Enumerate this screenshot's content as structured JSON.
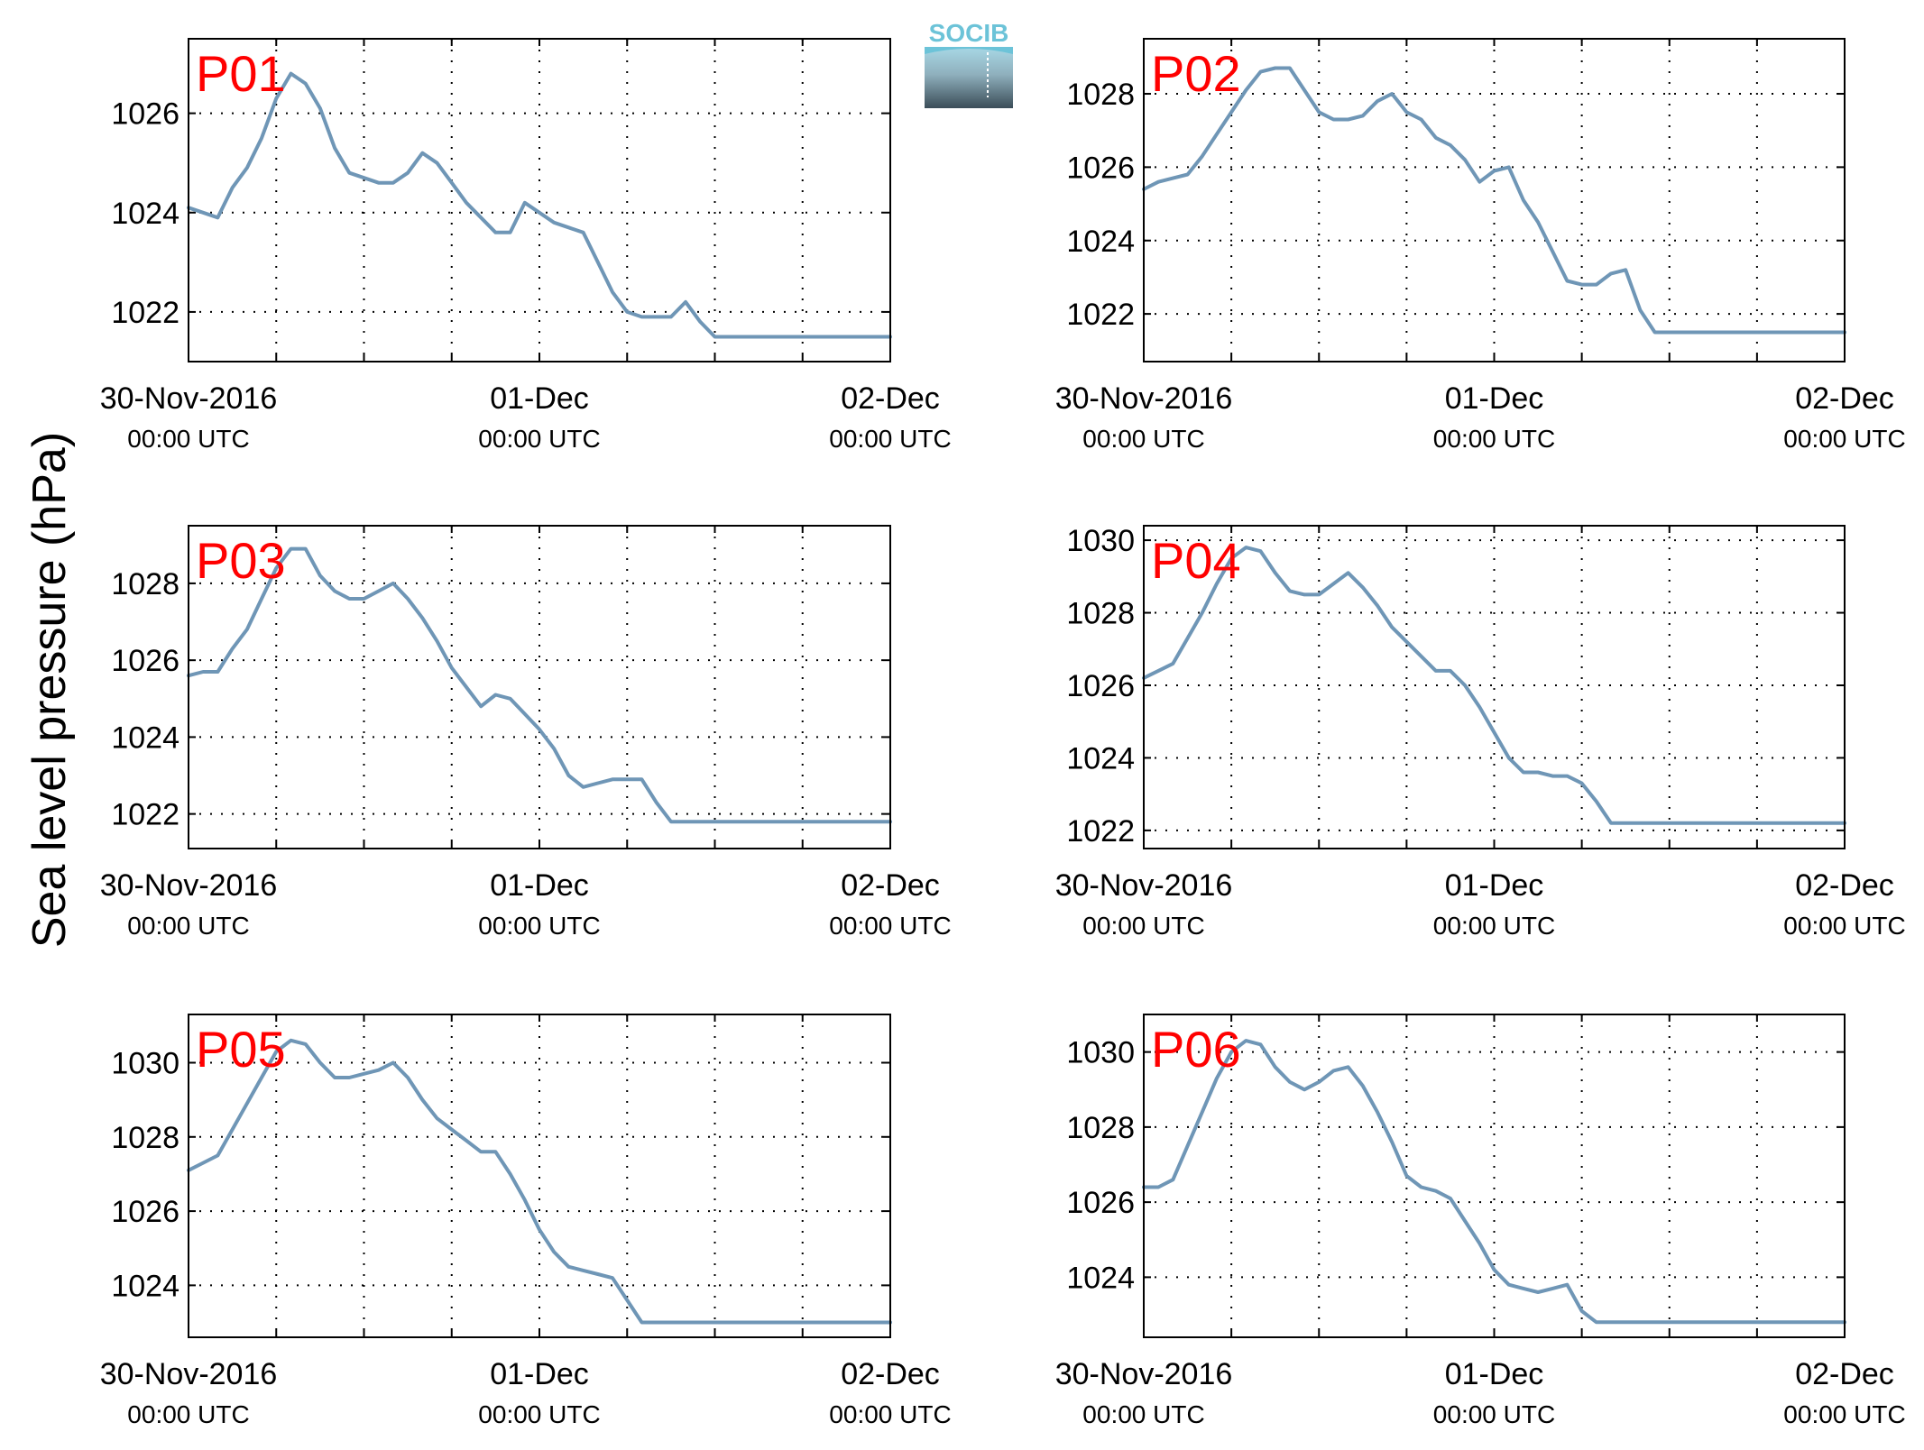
{
  "figure": {
    "ylabel": "Sea level pressure (hPa)",
    "logo_text": "SOCIB",
    "line_color": "#6f96b6",
    "label_color": "#ff0000"
  },
  "chart_data": [
    {
      "type": "line",
      "label": "P01",
      "x_ticks": [
        {
          "main": "30-Nov-2016",
          "sub": "00:00 UTC"
        },
        {
          "main": "01-Dec",
          "sub": "00:00 UTC"
        },
        {
          "main": "02-Dec",
          "sub": "00:00 UTC"
        }
      ],
      "xlim": [
        0,
        48
      ],
      "ylim": [
        1021.0,
        1027.5
      ],
      "yticks": [
        1022,
        1024,
        1026
      ],
      "grid": true,
      "series": [
        {
          "x": [
            0,
            1,
            2,
            3,
            4,
            5,
            6,
            7,
            8,
            9,
            10,
            11,
            12,
            13,
            14,
            15,
            16,
            17,
            18,
            19,
            20,
            21,
            22,
            23,
            24,
            25,
            26,
            27,
            28,
            29,
            30,
            31,
            32,
            33,
            34,
            35,
            36,
            37,
            38,
            39,
            40,
            41,
            42,
            43,
            44,
            45,
            46,
            47,
            48
          ],
          "y": [
            1024.1,
            1024.0,
            1023.9,
            1024.5,
            1024.9,
            1025.5,
            1026.3,
            1026.8,
            1026.6,
            1026.1,
            1025.3,
            1024.8,
            1024.7,
            1024.6,
            1024.6,
            1024.8,
            1025.2,
            1025.0,
            1024.6,
            1024.2,
            1023.9,
            1023.6,
            1023.6,
            1024.2,
            1024.0,
            1023.8,
            1023.7,
            1023.6,
            1023.0,
            1022.4,
            1022.0,
            1021.9,
            1021.9,
            1021.9,
            1022.2,
            1021.8,
            1021.5,
            1021.5,
            1021.5,
            1021.5,
            1021.5,
            1021.5,
            1021.5,
            1021.5,
            1021.5,
            1021.5,
            1021.5,
            1021.5,
            1021.5
          ]
        }
      ]
    },
    {
      "type": "line",
      "label": "P02",
      "x_ticks": [
        {
          "main": "30-Nov-2016",
          "sub": "00:00 UTC"
        },
        {
          "main": "01-Dec",
          "sub": "00:00 UTC"
        },
        {
          "main": "02-Dec",
          "sub": "00:00 UTC"
        }
      ],
      "xlim": [
        0,
        48
      ],
      "ylim": [
        1020.7,
        1029.5
      ],
      "yticks": [
        1022,
        1024,
        1026,
        1028
      ],
      "grid": true,
      "series": [
        {
          "x": [
            0,
            1,
            2,
            3,
            4,
            5,
            6,
            7,
            8,
            9,
            10,
            11,
            12,
            13,
            14,
            15,
            16,
            17,
            18,
            19,
            20,
            21,
            22,
            23,
            24,
            25,
            26,
            27,
            28,
            29,
            30,
            31,
            32,
            33,
            34,
            35,
            36,
            37,
            38,
            39,
            40,
            41,
            42,
            43,
            44,
            45,
            46,
            47,
            48
          ],
          "y": [
            1025.4,
            1025.6,
            1025.7,
            1025.8,
            1026.3,
            1026.9,
            1027.5,
            1028.1,
            1028.6,
            1028.7,
            1028.7,
            1028.1,
            1027.5,
            1027.3,
            1027.3,
            1027.4,
            1027.8,
            1028.0,
            1027.5,
            1027.3,
            1026.8,
            1026.6,
            1026.2,
            1025.6,
            1025.9,
            1026.0,
            1025.1,
            1024.5,
            1023.7,
            1022.9,
            1022.8,
            1022.8,
            1023.1,
            1023.2,
            1022.1,
            1021.5,
            1021.5,
            1021.5,
            1021.5,
            1021.5,
            1021.5,
            1021.5,
            1021.5,
            1021.5,
            1021.5,
            1021.5,
            1021.5,
            1021.5,
            1021.5
          ]
        }
      ]
    },
    {
      "type": "line",
      "label": "P03",
      "x_ticks": [
        {
          "main": "30-Nov-2016",
          "sub": "00:00 UTC"
        },
        {
          "main": "01-Dec",
          "sub": "00:00 UTC"
        },
        {
          "main": "02-Dec",
          "sub": "00:00 UTC"
        }
      ],
      "xlim": [
        0,
        48
      ],
      "ylim": [
        1021.1,
        1029.5
      ],
      "yticks": [
        1022,
        1024,
        1026,
        1028
      ],
      "grid": true,
      "series": [
        {
          "x": [
            0,
            1,
            2,
            3,
            4,
            5,
            6,
            7,
            8,
            9,
            10,
            11,
            12,
            13,
            14,
            15,
            16,
            17,
            18,
            19,
            20,
            21,
            22,
            23,
            24,
            25,
            26,
            27,
            28,
            29,
            30,
            31,
            32,
            33,
            34,
            35,
            36,
            37,
            38,
            39,
            40,
            41,
            42,
            43,
            44,
            45,
            46,
            47,
            48
          ],
          "y": [
            1025.6,
            1025.7,
            1025.7,
            1026.3,
            1026.8,
            1027.6,
            1028.4,
            1028.9,
            1028.9,
            1028.2,
            1027.8,
            1027.6,
            1027.6,
            1027.8,
            1028.0,
            1027.6,
            1027.1,
            1026.5,
            1025.8,
            1025.3,
            1024.8,
            1025.1,
            1025.0,
            1024.6,
            1024.2,
            1023.7,
            1023.0,
            1022.7,
            1022.8,
            1022.9,
            1022.9,
            1022.9,
            1022.3,
            1021.8,
            1021.8,
            1021.8,
            1021.8,
            1021.8,
            1021.8,
            1021.8,
            1021.8,
            1021.8,
            1021.8,
            1021.8,
            1021.8,
            1021.8,
            1021.8,
            1021.8,
            1021.8
          ]
        }
      ]
    },
    {
      "type": "line",
      "label": "P04",
      "x_ticks": [
        {
          "main": "30-Nov-2016",
          "sub": "00:00 UTC"
        },
        {
          "main": "01-Dec",
          "sub": "00:00 UTC"
        },
        {
          "main": "02-Dec",
          "sub": "00:00 UTC"
        }
      ],
      "xlim": [
        0,
        48
      ],
      "ylim": [
        1021.5,
        1030.4
      ],
      "yticks": [
        1022,
        1024,
        1026,
        1028,
        1030
      ],
      "grid": true,
      "series": [
        {
          "x": [
            0,
            1,
            2,
            3,
            4,
            5,
            6,
            7,
            8,
            9,
            10,
            11,
            12,
            13,
            14,
            15,
            16,
            17,
            18,
            19,
            20,
            21,
            22,
            23,
            24,
            25,
            26,
            27,
            28,
            29,
            30,
            31,
            32,
            33,
            34,
            35,
            36,
            37,
            38,
            39,
            40,
            41,
            42,
            43,
            44,
            45,
            46,
            47,
            48
          ],
          "y": [
            1026.2,
            1026.4,
            1026.6,
            1027.3,
            1028.0,
            1028.8,
            1029.5,
            1029.8,
            1029.7,
            1029.1,
            1028.6,
            1028.5,
            1028.5,
            1028.8,
            1029.1,
            1028.7,
            1028.2,
            1027.6,
            1027.2,
            1026.8,
            1026.4,
            1026.4,
            1026.0,
            1025.4,
            1024.7,
            1024.0,
            1023.6,
            1023.6,
            1023.5,
            1023.5,
            1023.3,
            1022.8,
            1022.2,
            1022.2,
            1022.2,
            1022.2,
            1022.2,
            1022.2,
            1022.2,
            1022.2,
            1022.2,
            1022.2,
            1022.2,
            1022.2,
            1022.2,
            1022.2,
            1022.2,
            1022.2,
            1022.2
          ]
        }
      ]
    },
    {
      "type": "line",
      "label": "P05",
      "x_ticks": [
        {
          "main": "30-Nov-2016",
          "sub": "00:00 UTC"
        },
        {
          "main": "01-Dec",
          "sub": "00:00 UTC"
        },
        {
          "main": "02-Dec",
          "sub": "00:00 UTC"
        }
      ],
      "xlim": [
        0,
        48
      ],
      "ylim": [
        1022.6,
        1031.3
      ],
      "yticks": [
        1024,
        1026,
        1028,
        1030
      ],
      "grid": true,
      "series": [
        {
          "x": [
            0,
            1,
            2,
            3,
            4,
            5,
            6,
            7,
            8,
            9,
            10,
            11,
            12,
            13,
            14,
            15,
            16,
            17,
            18,
            19,
            20,
            21,
            22,
            23,
            24,
            25,
            26,
            27,
            28,
            29,
            30,
            31,
            32,
            33,
            34,
            35,
            36,
            37,
            38,
            39,
            40,
            41,
            42,
            43,
            44,
            45,
            46,
            47,
            48
          ],
          "y": [
            1027.1,
            1027.3,
            1027.5,
            1028.2,
            1028.9,
            1029.6,
            1030.3,
            1030.6,
            1030.5,
            1030.0,
            1029.6,
            1029.6,
            1029.7,
            1029.8,
            1030.0,
            1029.6,
            1029.0,
            1028.5,
            1028.2,
            1027.9,
            1027.6,
            1027.6,
            1027.0,
            1026.3,
            1025.5,
            1024.9,
            1024.5,
            1024.4,
            1024.3,
            1024.2,
            1023.6,
            1023.0,
            1023.0,
            1023.0,
            1023.0,
            1023.0,
            1023.0,
            1023.0,
            1023.0,
            1023.0,
            1023.0,
            1023.0,
            1023.0,
            1023.0,
            1023.0,
            1023.0,
            1023.0,
            1023.0,
            1023.0
          ]
        }
      ]
    },
    {
      "type": "line",
      "label": "P06",
      "x_ticks": [
        {
          "main": "30-Nov-2016",
          "sub": "00:00 UTC"
        },
        {
          "main": "01-Dec",
          "sub": "00:00 UTC"
        },
        {
          "main": "02-Dec",
          "sub": "00:00 UTC"
        }
      ],
      "xlim": [
        0,
        48
      ],
      "ylim": [
        1022.4,
        1031.0
      ],
      "yticks": [
        1024,
        1026,
        1028,
        1030
      ],
      "grid": true,
      "series": [
        {
          "x": [
            0,
            1,
            2,
            3,
            4,
            5,
            6,
            7,
            8,
            9,
            10,
            11,
            12,
            13,
            14,
            15,
            16,
            17,
            18,
            19,
            20,
            21,
            22,
            23,
            24,
            25,
            26,
            27,
            28,
            29,
            30,
            31,
            32,
            33,
            34,
            35,
            36,
            37,
            38,
            39,
            40,
            41,
            42,
            43,
            44,
            45,
            46,
            47,
            48
          ],
          "y": [
            1026.4,
            1026.4,
            1026.6,
            1027.5,
            1028.4,
            1029.3,
            1030.0,
            1030.3,
            1030.2,
            1029.6,
            1029.2,
            1029.0,
            1029.2,
            1029.5,
            1029.6,
            1029.1,
            1028.4,
            1027.6,
            1026.7,
            1026.4,
            1026.3,
            1026.1,
            1025.5,
            1024.9,
            1024.2,
            1023.8,
            1023.7,
            1023.6,
            1023.7,
            1023.8,
            1023.1,
            1022.8,
            1022.8,
            1022.8,
            1022.8,
            1022.8,
            1022.8,
            1022.8,
            1022.8,
            1022.8,
            1022.8,
            1022.8,
            1022.8,
            1022.8,
            1022.8,
            1022.8,
            1022.8,
            1022.8,
            1022.8
          ]
        }
      ]
    }
  ]
}
